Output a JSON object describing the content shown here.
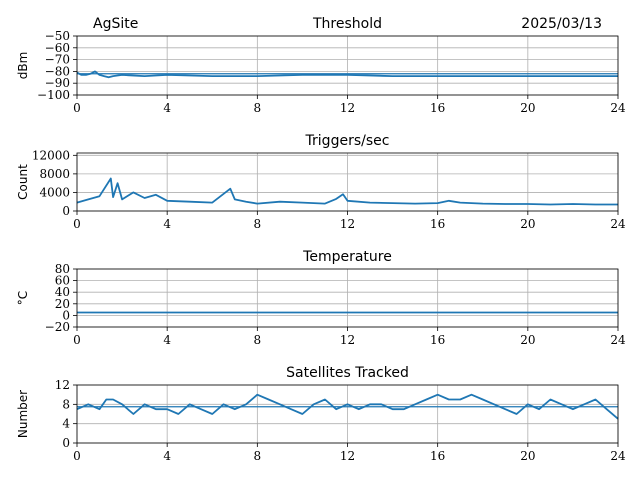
{
  "header": {
    "site": "AgSite",
    "date": "2025/03/13"
  },
  "colors": {
    "line": "#1f77b4",
    "grid": "#b0b0b0"
  },
  "chart_data": [
    {
      "type": "line",
      "title": "Threshold",
      "xlabel": "",
      "ylabel": "dBm",
      "xlim": [
        0,
        24
      ],
      "ylim": [
        -100,
        -50
      ],
      "xticks": [
        0,
        4,
        8,
        12,
        16,
        20,
        24
      ],
      "yticks": [
        -100,
        -90,
        -80,
        -70,
        -60,
        -50
      ],
      "ytick_labels": [
        "−100",
        "−90",
        "−80",
        "−70",
        "−60",
        "−50"
      ],
      "hline": -82,
      "grid": true,
      "series": [
        {
          "x": [
            0,
            0.2,
            0.4,
            0.6,
            0.8,
            1.0,
            1.2,
            1.4,
            1.6,
            2,
            3,
            4,
            6,
            8,
            10,
            12,
            14,
            16,
            18,
            20,
            22,
            24
          ],
          "values": [
            -81,
            -83,
            -83,
            -82,
            -80,
            -83,
            -84,
            -85,
            -84,
            -83,
            -84,
            -83,
            -84,
            -84,
            -83,
            -83,
            -84,
            -84,
            -84,
            -84,
            -84,
            -84
          ]
        }
      ]
    },
    {
      "type": "line",
      "title": "Triggers/sec",
      "xlabel": "",
      "ylabel": "Count",
      "xlim": [
        0,
        24
      ],
      "ylim": [
        0,
        12500
      ],
      "xticks": [
        0,
        4,
        8,
        12,
        16,
        20,
        24
      ],
      "yticks": [
        0,
        4000,
        8000,
        12000
      ],
      "ytick_labels": [
        "0",
        "4000",
        "8000",
        "12000"
      ],
      "grid": true,
      "series": [
        {
          "x": [
            0,
            0.5,
            1.0,
            1.5,
            1.6,
            1.8,
            2.0,
            2.5,
            3.0,
            3.5,
            4.0,
            5.0,
            6.0,
            6.8,
            7.0,
            7.5,
            8.0,
            9.0,
            10.0,
            11.0,
            11.5,
            11.8,
            12.0,
            13.0,
            14.0,
            15.0,
            16.0,
            16.5,
            17.0,
            18.0,
            19.0,
            20.0,
            21.0,
            22.0,
            23.0,
            24.0
          ],
          "values": [
            1800,
            2500,
            3200,
            7000,
            3000,
            6000,
            2500,
            4000,
            2800,
            3500,
            2200,
            2000,
            1800,
            4800,
            2500,
            2000,
            1600,
            2000,
            1800,
            1600,
            2600,
            3600,
            2200,
            1800,
            1700,
            1600,
            1700,
            2200,
            1800,
            1600,
            1500,
            1500,
            1400,
            1500,
            1400,
            1400
          ]
        }
      ]
    },
    {
      "type": "line",
      "title": "Temperature",
      "xlabel": "",
      "ylabel": "°C",
      "xlim": [
        0,
        24
      ],
      "ylim": [
        -20,
        80
      ],
      "xticks": [
        0,
        4,
        8,
        12,
        16,
        20,
        24
      ],
      "yticks": [
        -20,
        0,
        20,
        40,
        60,
        80
      ],
      "ytick_labels": [
        "−20",
        "0",
        "20",
        "40",
        "60",
        "80"
      ],
      "grid": true,
      "series": [
        {
          "x": [
            0,
            24
          ],
          "values": [
            5,
            5
          ]
        }
      ]
    },
    {
      "type": "line",
      "title": "Satellites Tracked",
      "xlabel": "",
      "ylabel": "Number",
      "xlim": [
        0,
        24
      ],
      "ylim": [
        0,
        12
      ],
      "xticks": [
        0,
        4,
        8,
        12,
        16,
        20,
        24
      ],
      "yticks": [
        0,
        4,
        8,
        12
      ],
      "ytick_labels": [
        "0",
        "4",
        "8",
        "12"
      ],
      "hline": 7.5,
      "grid": true,
      "series": [
        {
          "x": [
            0,
            0.5,
            1.0,
            1.3,
            1.6,
            2.0,
            2.5,
            3.0,
            3.5,
            4.0,
            4.5,
            5.0,
            5.5,
            6.0,
            6.5,
            7.0,
            7.5,
            8.0,
            8.5,
            9.0,
            9.5,
            10.0,
            10.5,
            11.0,
            11.5,
            12.0,
            12.5,
            13.0,
            13.5,
            14.0,
            14.5,
            15.0,
            15.5,
            16.0,
            16.5,
            17.0,
            17.5,
            18.0,
            18.5,
            19.0,
            19.5,
            20.0,
            20.5,
            21.0,
            21.5,
            22.0,
            22.5,
            23.0,
            23.5,
            24.0
          ],
          "values": [
            7,
            8,
            7,
            9,
            9,
            8,
            6,
            8,
            7,
            7,
            6,
            8,
            7,
            6,
            8,
            7,
            8,
            10,
            9,
            8,
            7,
            6,
            8,
            9,
            7,
            8,
            7,
            8,
            8,
            7,
            7,
            8,
            9,
            10,
            9,
            9,
            10,
            9,
            8,
            7,
            6,
            8,
            7,
            9,
            8,
            7,
            8,
            9,
            7,
            5
          ]
        }
      ]
    }
  ]
}
